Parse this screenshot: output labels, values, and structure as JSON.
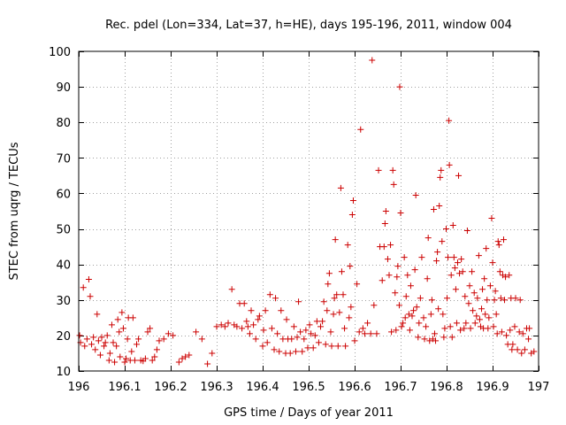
{
  "chart_data": {
    "type": "scatter",
    "title": "Rec. pdel (Lon=334, Lat=37, h=HE), days 195-196, 2011, window 004",
    "xlabel": "GPS time / Days of year 2011",
    "ylabel": "STEC from uqrg / TECUs",
    "xlim": [
      196,
      197
    ],
    "ylim": [
      10,
      100
    ],
    "x_ticks": [
      196,
      196.1,
      196.2,
      196.3,
      196.4,
      196.5,
      196.6,
      196.7,
      196.8,
      196.9,
      197
    ],
    "x_tick_labels": [
      "196",
      "196.1",
      "196.2",
      "196.3",
      "196.4",
      "196.5",
      "196.6",
      "196.7",
      "196.8",
      "196.9",
      "197"
    ],
    "y_ticks": [
      10,
      20,
      30,
      40,
      50,
      60,
      70,
      80,
      90,
      100
    ],
    "y_tick_labels": [
      "10",
      "20",
      "30",
      "40",
      "50",
      "60",
      "70",
      "80",
      "90",
      "100"
    ],
    "grid": true,
    "marker": "+",
    "series": [
      {
        "name": "STEC",
        "color": "#cc0000",
        "points": [
          [
            196.002,
            20.0
          ],
          [
            196.004,
            18.0
          ],
          [
            196.01,
            33.5
          ],
          [
            196.013,
            17.0
          ],
          [
            196.018,
            19.0
          ],
          [
            196.022,
            35.8
          ],
          [
            196.025,
            31.0
          ],
          [
            196.028,
            17.5
          ],
          [
            196.032,
            19.5
          ],
          [
            196.036,
            16.0
          ],
          [
            196.04,
            26.0
          ],
          [
            196.043,
            18.5
          ],
          [
            196.047,
            14.5
          ],
          [
            196.05,
            19.5
          ],
          [
            196.055,
            17.0
          ],
          [
            196.058,
            18.0
          ],
          [
            196.062,
            20.0
          ],
          [
            196.066,
            13.0
          ],
          [
            196.068,
            15.0
          ],
          [
            196.072,
            23.0
          ],
          [
            196.075,
            18.0
          ],
          [
            196.078,
            12.5
          ],
          [
            196.082,
            17.0
          ],
          [
            196.085,
            24.5
          ],
          [
            196.088,
            21.0
          ],
          [
            196.09,
            14.0
          ],
          [
            196.094,
            26.5
          ],
          [
            196.097,
            22.0
          ],
          [
            196.1,
            12.5
          ],
          [
            196.103,
            13.5
          ],
          [
            196.106,
            19.0
          ],
          [
            196.108,
            25.0
          ],
          [
            196.112,
            13.0
          ],
          [
            196.115,
            15.5
          ],
          [
            196.118,
            25.0
          ],
          [
            196.122,
            13.0
          ],
          [
            196.126,
            17.5
          ],
          [
            196.13,
            19.0
          ],
          [
            196.135,
            13.0
          ],
          [
            196.14,
            12.8
          ],
          [
            196.145,
            13.5
          ],
          [
            196.15,
            21.0
          ],
          [
            196.155,
            22.0
          ],
          [
            196.16,
            13.0
          ],
          [
            196.165,
            14.0
          ],
          [
            196.17,
            16.0
          ],
          [
            196.175,
            18.5
          ],
          [
            196.185,
            19.0
          ],
          [
            196.195,
            20.5
          ],
          [
            196.205,
            20.0
          ],
          [
            196.218,
            12.5
          ],
          [
            196.225,
            13.5
          ],
          [
            196.232,
            14.0
          ],
          [
            196.24,
            14.5
          ],
          [
            196.255,
            21.0
          ],
          [
            196.268,
            19.0
          ],
          [
            196.28,
            12.0
          ],
          [
            196.29,
            15.0
          ],
          [
            196.3,
            22.5
          ],
          [
            196.31,
            23.0
          ],
          [
            196.318,
            22.5
          ],
          [
            196.325,
            23.5
          ],
          [
            196.333,
            33.0
          ],
          [
            196.338,
            23.0
          ],
          [
            196.344,
            22.5
          ],
          [
            196.35,
            29.0
          ],
          [
            196.355,
            22.0
          ],
          [
            196.36,
            29.0
          ],
          [
            196.365,
            24.0
          ],
          [
            196.368,
            22.5
          ],
          [
            196.372,
            20.5
          ],
          [
            196.375,
            27.0
          ],
          [
            196.38,
            23.0
          ],
          [
            196.385,
            19.0
          ],
          [
            196.39,
            24.5
          ],
          [
            196.393,
            25.5
          ],
          [
            196.4,
            17.0
          ],
          [
            196.402,
            21.5
          ],
          [
            196.406,
            27.0
          ],
          [
            196.41,
            18.0
          ],
          [
            196.416,
            31.5
          ],
          [
            196.42,
            22.0
          ],
          [
            196.425,
            16.0
          ],
          [
            196.428,
            30.5
          ],
          [
            196.432,
            20.5
          ],
          [
            196.436,
            15.5
          ],
          [
            196.44,
            27.0
          ],
          [
            196.444,
            19.0
          ],
          [
            196.45,
            15.0
          ],
          [
            196.452,
            24.5
          ],
          [
            196.455,
            19.0
          ],
          [
            196.46,
            15.0
          ],
          [
            196.463,
            19.0
          ],
          [
            196.468,
            22.5
          ],
          [
            196.472,
            15.5
          ],
          [
            196.475,
            19.5
          ],
          [
            196.478,
            29.5
          ],
          [
            196.482,
            21.0
          ],
          [
            196.486,
            15.5
          ],
          [
            196.49,
            19.0
          ],
          [
            196.494,
            21.5
          ],
          [
            196.498,
            16.5
          ],
          [
            196.502,
            23.0
          ],
          [
            196.505,
            20.5
          ],
          [
            196.51,
            16.5
          ],
          [
            196.514,
            20.0
          ],
          [
            196.518,
            24.0
          ],
          [
            196.522,
            18.0
          ],
          [
            196.526,
            22.5
          ],
          [
            196.53,
            24.0
          ],
          [
            196.533,
            29.5
          ],
          [
            196.537,
            17.5
          ],
          [
            196.54,
            27.0
          ],
          [
            196.542,
            34.5
          ],
          [
            196.545,
            37.5
          ],
          [
            196.548,
            21.0
          ],
          [
            196.55,
            17.0
          ],
          [
            196.554,
            26.0
          ],
          [
            196.556,
            30.5
          ],
          [
            196.558,
            47.0
          ],
          [
            196.561,
            31.5
          ],
          [
            196.564,
            17.0
          ],
          [
            196.567,
            26.5
          ],
          [
            196.57,
            61.5
          ],
          [
            196.572,
            38.0
          ],
          [
            196.575,
            31.5
          ],
          [
            196.578,
            22.0
          ],
          [
            196.58,
            17.0
          ],
          [
            196.585,
            45.5
          ],
          [
            196.588,
            25.0
          ],
          [
            196.59,
            39.5
          ],
          [
            196.592,
            28.0
          ],
          [
            196.595,
            54.0
          ],
          [
            196.597,
            58.0
          ],
          [
            196.6,
            18.5
          ],
          [
            196.605,
            34.5
          ],
          [
            196.61,
            21.0
          ],
          [
            196.613,
            78.0
          ],
          [
            196.618,
            22.0
          ],
          [
            196.622,
            20.5
          ],
          [
            196.628,
            23.5
          ],
          [
            196.635,
            20.5
          ],
          [
            196.638,
            97.5
          ],
          [
            196.642,
            28.5
          ],
          [
            196.648,
            20.5
          ],
          [
            196.652,
            66.5
          ],
          [
            196.655,
            45.0
          ],
          [
            196.66,
            35.5
          ],
          [
            196.664,
            45.0
          ],
          [
            196.666,
            51.5
          ],
          [
            196.668,
            55.0
          ],
          [
            196.672,
            41.5
          ],
          [
            196.675,
            37.0
          ],
          [
            196.678,
            45.5
          ],
          [
            196.68,
            21.0
          ],
          [
            196.683,
            66.5
          ],
          [
            196.685,
            62.5
          ],
          [
            196.688,
            32.0
          ],
          [
            196.69,
            21.5
          ],
          [
            196.692,
            36.5
          ],
          [
            196.694,
            39.5
          ],
          [
            196.697,
            28.5
          ],
          [
            196.698,
            90.0
          ],
          [
            196.7,
            54.5
          ],
          [
            196.702,
            22.5
          ],
          [
            196.705,
            23.5
          ],
          [
            196.708,
            42.0
          ],
          [
            196.71,
            25.0
          ],
          [
            196.712,
            31.0
          ],
          [
            196.715,
            37.0
          ],
          [
            196.718,
            26.0
          ],
          [
            196.72,
            21.5
          ],
          [
            196.722,
            34.0
          ],
          [
            196.725,
            25.5
          ],
          [
            196.728,
            27.0
          ],
          [
            196.731,
            38.5
          ],
          [
            196.733,
            59.5
          ],
          [
            196.735,
            28.0
          ],
          [
            196.738,
            19.5
          ],
          [
            196.74,
            23.5
          ],
          [
            196.743,
            30.5
          ],
          [
            196.746,
            42.0
          ],
          [
            196.75,
            25.0
          ],
          [
            196.752,
            19.0
          ],
          [
            196.755,
            22.5
          ],
          [
            196.758,
            36.0
          ],
          [
            196.76,
            47.5
          ],
          [
            196.763,
            18.5
          ],
          [
            196.766,
            26.0
          ],
          [
            196.768,
            30.0
          ],
          [
            196.77,
            19.0
          ],
          [
            196.772,
            55.5
          ],
          [
            196.774,
            20.5
          ],
          [
            196.776,
            18.5
          ],
          [
            196.778,
            41.0
          ],
          [
            196.78,
            43.5
          ],
          [
            196.782,
            27.5
          ],
          [
            196.784,
            56.5
          ],
          [
            196.786,
            64.5
          ],
          [
            196.788,
            66.5
          ],
          [
            196.79,
            46.5
          ],
          [
            196.792,
            26.0
          ],
          [
            196.794,
            19.5
          ],
          [
            196.796,
            22.0
          ],
          [
            196.799,
            50.0
          ],
          [
            196.801,
            30.5
          ],
          [
            196.803,
            42.0
          ],
          [
            196.805,
            80.5
          ],
          [
            196.806,
            68.0
          ],
          [
            196.808,
            22.5
          ],
          [
            196.81,
            37.0
          ],
          [
            196.812,
            19.5
          ],
          [
            196.814,
            51.0
          ],
          [
            196.816,
            42.0
          ],
          [
            196.818,
            39.0
          ],
          [
            196.82,
            33.0
          ],
          [
            196.822,
            23.5
          ],
          [
            196.824,
            40.5
          ],
          [
            196.826,
            65.0
          ],
          [
            196.828,
            37.5
          ],
          [
            196.83,
            21.5
          ],
          [
            196.832,
            41.5
          ],
          [
            196.835,
            38.0
          ],
          [
            196.838,
            22.0
          ],
          [
            196.84,
            31.0
          ],
          [
            196.842,
            23.5
          ],
          [
            196.845,
            49.5
          ],
          [
            196.848,
            29.0
          ],
          [
            196.85,
            34.0
          ],
          [
            196.852,
            22.0
          ],
          [
            196.855,
            38.0
          ],
          [
            196.857,
            27.0
          ],
          [
            196.86,
            32.0
          ],
          [
            196.862,
            23.5
          ],
          [
            196.865,
            25.5
          ],
          [
            196.867,
            30.5
          ],
          [
            196.87,
            42.5
          ],
          [
            196.872,
            24.5
          ],
          [
            196.874,
            22.5
          ],
          [
            196.876,
            27.5
          ],
          [
            196.878,
            33.0
          ],
          [
            196.88,
            22.0
          ],
          [
            196.882,
            36.0
          ],
          [
            196.884,
            26.0
          ],
          [
            196.886,
            44.5
          ],
          [
            196.888,
            30.0
          ],
          [
            196.89,
            22.0
          ],
          [
            196.892,
            25.0
          ],
          [
            196.895,
            34.0
          ],
          [
            196.898,
            53.0
          ],
          [
            196.9,
            40.5
          ],
          [
            196.902,
            22.5
          ],
          [
            196.904,
            30.0
          ],
          [
            196.906,
            32.5
          ],
          [
            196.908,
            26.0
          ],
          [
            196.91,
            20.5
          ],
          [
            196.912,
            46.5
          ],
          [
            196.914,
            45.5
          ],
          [
            196.916,
            38.0
          ],
          [
            196.918,
            30.5
          ],
          [
            196.92,
            21.0
          ],
          [
            196.922,
            37.0
          ],
          [
            196.924,
            47.0
          ],
          [
            196.926,
            30.0
          ],
          [
            196.928,
            36.5
          ],
          [
            196.93,
            20.0
          ],
          [
            196.933,
            17.5
          ],
          [
            196.936,
            37.0
          ],
          [
            196.938,
            21.5
          ],
          [
            196.94,
            30.5
          ],
          [
            196.942,
            16.0
          ],
          [
            196.944,
            17.5
          ],
          [
            196.948,
            22.5
          ],
          [
            196.95,
            30.5
          ],
          [
            196.954,
            16.0
          ],
          [
            196.958,
            21.0
          ],
          [
            196.96,
            30.0
          ],
          [
            196.963,
            15.0
          ],
          [
            196.966,
            20.5
          ],
          [
            196.97,
            16.0
          ],
          [
            196.974,
            22.0
          ],
          [
            196.978,
            19.0
          ],
          [
            196.98,
            22.0
          ],
          [
            196.984,
            15.0
          ],
          [
            196.99,
            15.5
          ]
        ]
      }
    ]
  }
}
